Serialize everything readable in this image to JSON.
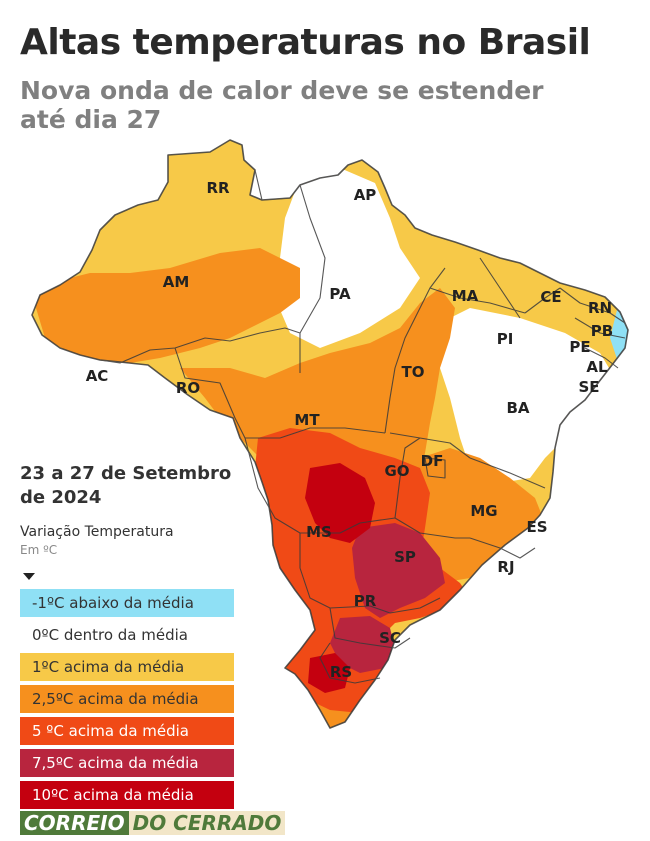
{
  "header": {
    "title": "Altas temperaturas no Brasil",
    "subtitle": "Nova onda de calor deve se estender até dia 27"
  },
  "period": "23 a 27 de Setembro de 2024",
  "legend": {
    "title": "Variação Temperatura",
    "unit": "Em ºC",
    "items": [
      {
        "label": "-1ºC abaixo da média",
        "color": "#8fe0f5",
        "text_color": "#333333"
      },
      {
        "label": "0ºC dentro da média",
        "color": "#ffffff",
        "text_color": "#333333"
      },
      {
        "label": "1ºC acima da média",
        "color": "#f7c948",
        "text_color": "#333333"
      },
      {
        "label": "2,5ºC acima da média",
        "color": "#f6901e",
        "text_color": "#333333"
      },
      {
        "label": "5 ºC acima da média",
        "color": "#f04a16",
        "text_color": "#ffffff"
      },
      {
        "label": "7,5ºC acima da média",
        "color": "#b8253e",
        "text_color": "#ffffff"
      },
      {
        "label": "10ºC acima da média",
        "color": "#c4000f",
        "text_color": "#ffffff"
      }
    ]
  },
  "states": [
    "RR",
    "AP",
    "AM",
    "PA",
    "MA",
    "CE",
    "RN",
    "PB",
    "PE",
    "AL",
    "SE",
    "PI",
    "AC",
    "RO",
    "TO",
    "BA",
    "MT",
    "GO",
    "DF",
    "MG",
    "ES",
    "MS",
    "SP",
    "RJ",
    "PR",
    "SC",
    "RS"
  ],
  "watermark": {
    "part1": "CORREIO",
    "part2": "DO CERRADO"
  }
}
